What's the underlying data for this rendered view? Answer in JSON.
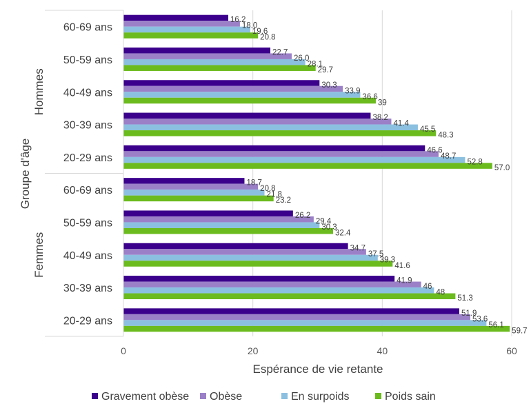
{
  "chart_data": {
    "type": "bar",
    "orientation": "horizontal",
    "xlabel": "Espérance de vie retante",
    "ylabel": "Groupe d'âge",
    "xlim": [
      0,
      60
    ],
    "xticks": [
      "0",
      "20",
      "40",
      "60"
    ],
    "grid": true,
    "legend_position": "bottom",
    "groups": [
      {
        "name": "Hommes",
        "categories": [
          "60-69 ans",
          "50-59 ans",
          "40-49 ans",
          "30-39 ans",
          "20-29 ans"
        ]
      },
      {
        "name": "Femmes",
        "categories": [
          "60-69 ans",
          "50-59 ans",
          "40-49 ans",
          "30-39 ans",
          "20-29 ans"
        ]
      }
    ],
    "series": [
      {
        "name": "Gravement obèse",
        "color": "#3b008c",
        "values": [
          16.2,
          22.7,
          30.3,
          38.2,
          46.6,
          18.7,
          26.2,
          34.7,
          41.9,
          51.9
        ],
        "labels": [
          "16.2",
          "22.7",
          "30.3",
          "38.2",
          "46.6",
          "18.7",
          "26.2",
          "34.7",
          "41.9",
          "51.9"
        ]
      },
      {
        "name": "Obèse",
        "color": "#9b80c8",
        "values": [
          18.0,
          26.0,
          33.9,
          41.4,
          48.7,
          20.8,
          29.4,
          37.5,
          46,
          53.6
        ],
        "labels": [
          "18.0",
          "26.0",
          "33.9",
          "41.4",
          "48.7",
          "20.8",
          "29.4",
          "37.5",
          "46",
          "53.6"
        ]
      },
      {
        "name": "En surpoids",
        "color": "#8cc0e0",
        "values": [
          19.6,
          28.1,
          36.6,
          45.5,
          52.8,
          21.8,
          30.3,
          39.3,
          48,
          56.1
        ],
        "labels": [
          "19.6",
          "28.1",
          "36.6",
          "45.5",
          "52.8",
          "21.8",
          "30.3",
          "39.3",
          "48",
          "56.1"
        ]
      },
      {
        "name": "Poids sain",
        "color": "#6cbb1e",
        "values": [
          20.8,
          29.7,
          39,
          48.3,
          57.0,
          23.2,
          32.4,
          41.6,
          51.3,
          59.7
        ],
        "labels": [
          "20.8",
          "29.7",
          "39",
          "48.3",
          "57.0",
          "23.2",
          "32.4",
          "41.6",
          "51.3",
          "59.7"
        ]
      }
    ]
  }
}
